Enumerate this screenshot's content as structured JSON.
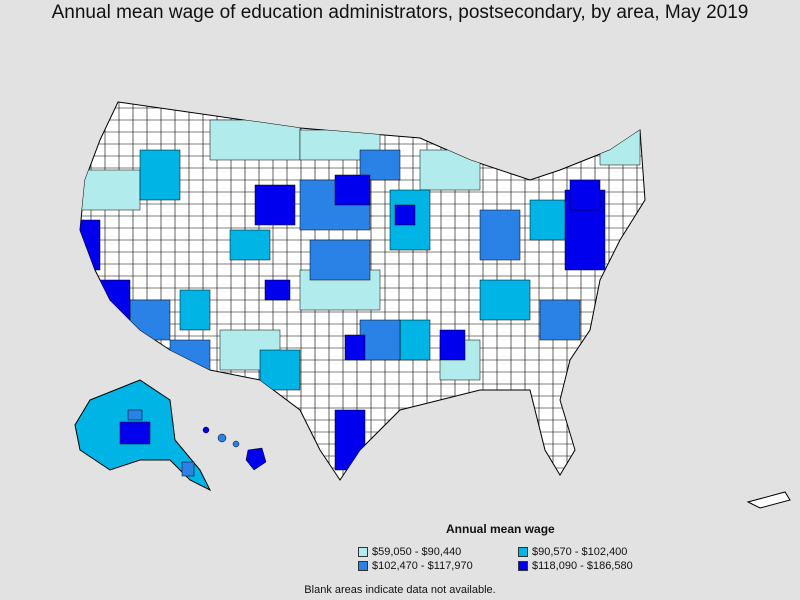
{
  "title": "Annual mean wage of education administrators, postsecondary, by area, May 2019",
  "legend": {
    "title": "Annual mean wage",
    "items": [
      {
        "label": "$59,050 - $90,440",
        "color": "#b2ebeb"
      },
      {
        "label": "$90,570 - $102,400",
        "color": "#00b4e6"
      },
      {
        "label": "$102,470 - $117,970",
        "color": "#2b82e6"
      },
      {
        "label": "$118,090 - $186,580",
        "color": "#0000ee"
      }
    ]
  },
  "footnote": "Blank areas indicate data not available.",
  "colors": {
    "background": "#e2e2e2",
    "no_data": "#ffffff",
    "border": "#000000"
  },
  "map": {
    "regions": [
      "contiguous-us",
      "alaska",
      "hawaii",
      "puerto-rico"
    ]
  }
}
